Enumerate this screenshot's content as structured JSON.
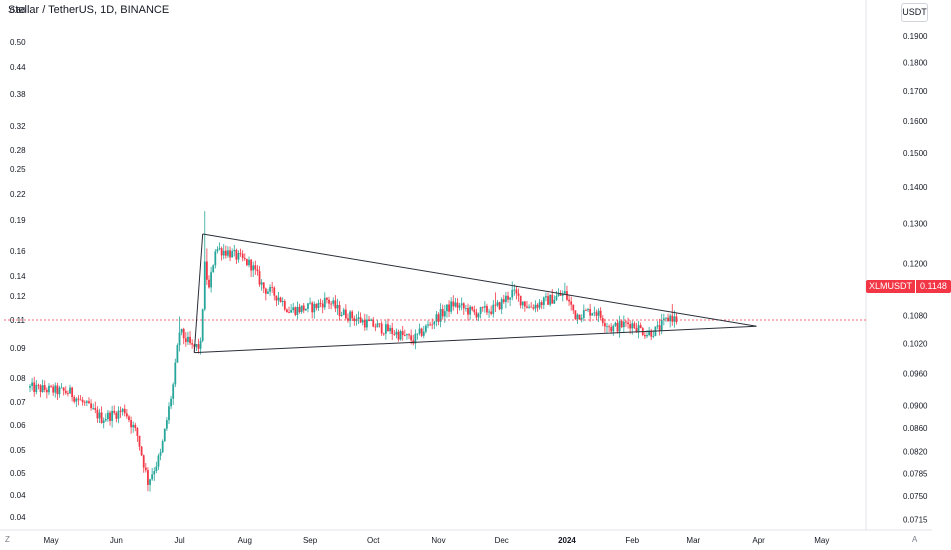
{
  "header": {
    "title": "Stellar / TetherUS, 1D, BINANCE",
    "currency": "USDT"
  },
  "price_tag": {
    "symbol": "XLMUSDT",
    "value": "0.1148"
  },
  "corner_labels": {
    "left": "Z",
    "right": "A"
  },
  "colors": {
    "up": "#26a69a",
    "down": "#f23645",
    "line": "#2a2e39",
    "axis_text": "#131722"
  },
  "chart_data": {
    "type": "candlestick",
    "title": "Stellar / TetherUS, 1D, BINANCE",
    "left_axis": {
      "scale": "log",
      "range": [
        0.0375,
        0.605
      ],
      "ticks": [
        "0.60",
        "0.50",
        "0.44",
        "0.38",
        "0.32",
        "0.28",
        "0.25",
        "0.22",
        "0.19",
        "0.16",
        "0.14",
        "0.12",
        "0.11",
        "0.09",
        "0.08",
        "0.07",
        "0.06",
        "0.05",
        "0.05",
        "0.04",
        "0.04"
      ]
    },
    "right_axis": {
      "scale": "log",
      "range": [
        0.07,
        0.201
      ],
      "ticks": [
        "0.1900",
        "0.1800",
        "0.1700",
        "0.1600",
        "0.1500",
        "0.1400",
        "0.1300",
        "0.1200",
        "0.1080",
        "0.1020",
        "0.0960",
        "0.0900",
        "0.0860",
        "0.0820",
        "0.0785",
        "0.0750",
        "0.0715"
      ]
    },
    "x_axis": {
      "labels": [
        "May",
        "Jun",
        "Jul",
        "Aug",
        "Sep",
        "Oct",
        "Nov",
        "Dec",
        "2024",
        "Feb",
        "Mar",
        "Apr",
        "May"
      ],
      "label_dates": [
        "2023-05-01",
        "2023-06-01",
        "2023-07-01",
        "2023-08-01",
        "2023-09-01",
        "2023-10-01",
        "2023-11-01",
        "2023-12-01",
        "2024-01-01",
        "2024-02-01",
        "2024-03-01",
        "2024-04-01",
        "2024-05-01"
      ],
      "range": [
        "2023-04-21",
        "2024-05-22"
      ]
    },
    "current_price": 0.1148,
    "triangle": {
      "upper": [
        [
          "2023-07-12",
          0.1815
        ],
        [
          "2024-03-31",
          0.111
        ]
      ],
      "lower": [
        [
          "2023-07-08",
          0.0965
        ],
        [
          "2024-03-31",
          0.111
        ]
      ],
      "left_edge": [
        [
          "2023-07-08",
          0.0965
        ],
        [
          "2023-07-12",
          0.1815
        ]
      ]
    },
    "anchors": [
      [
        "2023-04-21",
        0.08
      ],
      [
        "2023-05-10",
        0.078
      ],
      [
        "2023-05-25",
        0.068
      ],
      [
        "2023-06-05",
        0.071
      ],
      [
        "2023-06-11",
        0.062
      ],
      [
        "2023-06-16",
        0.0485
      ],
      [
        "2023-06-22",
        0.056
      ],
      [
        "2023-06-28",
        0.081
      ],
      [
        "2023-07-01",
        0.108
      ],
      [
        "2023-07-07",
        0.099
      ],
      [
        "2023-07-11",
        0.1
      ],
      [
        "2023-07-13",
        0.153
      ],
      [
        "2023-07-15",
        0.135
      ],
      [
        "2023-07-18",
        0.168
      ],
      [
        "2023-07-24",
        0.165
      ],
      [
        "2023-08-04",
        0.154
      ],
      [
        "2023-08-10",
        0.136
      ],
      [
        "2023-08-17",
        0.13
      ],
      [
        "2023-08-22",
        0.121
      ],
      [
        "2023-09-03",
        0.123
      ],
      [
        "2023-09-09",
        0.128
      ],
      [
        "2023-09-15",
        0.12
      ],
      [
        "2023-09-28",
        0.113
      ],
      [
        "2023-10-12",
        0.107
      ],
      [
        "2023-10-20",
        0.103
      ],
      [
        "2023-10-30",
        0.115
      ],
      [
        "2023-11-08",
        0.125
      ],
      [
        "2023-11-18",
        0.119
      ],
      [
        "2023-11-28",
        0.122
      ],
      [
        "2023-12-06",
        0.133
      ],
      [
        "2023-12-14",
        0.123
      ],
      [
        "2023-12-22",
        0.127
      ],
      [
        "2023-12-31",
        0.132
      ],
      [
        "2024-01-05",
        0.118
      ],
      [
        "2024-01-14",
        0.121
      ],
      [
        "2024-01-22",
        0.11
      ],
      [
        "2024-01-31",
        0.113
      ],
      [
        "2024-02-08",
        0.107
      ],
      [
        "2024-02-13",
        0.109
      ],
      [
        "2024-02-19",
        0.117
      ],
      [
        "2024-02-22",
        0.1148
      ]
    ]
  }
}
